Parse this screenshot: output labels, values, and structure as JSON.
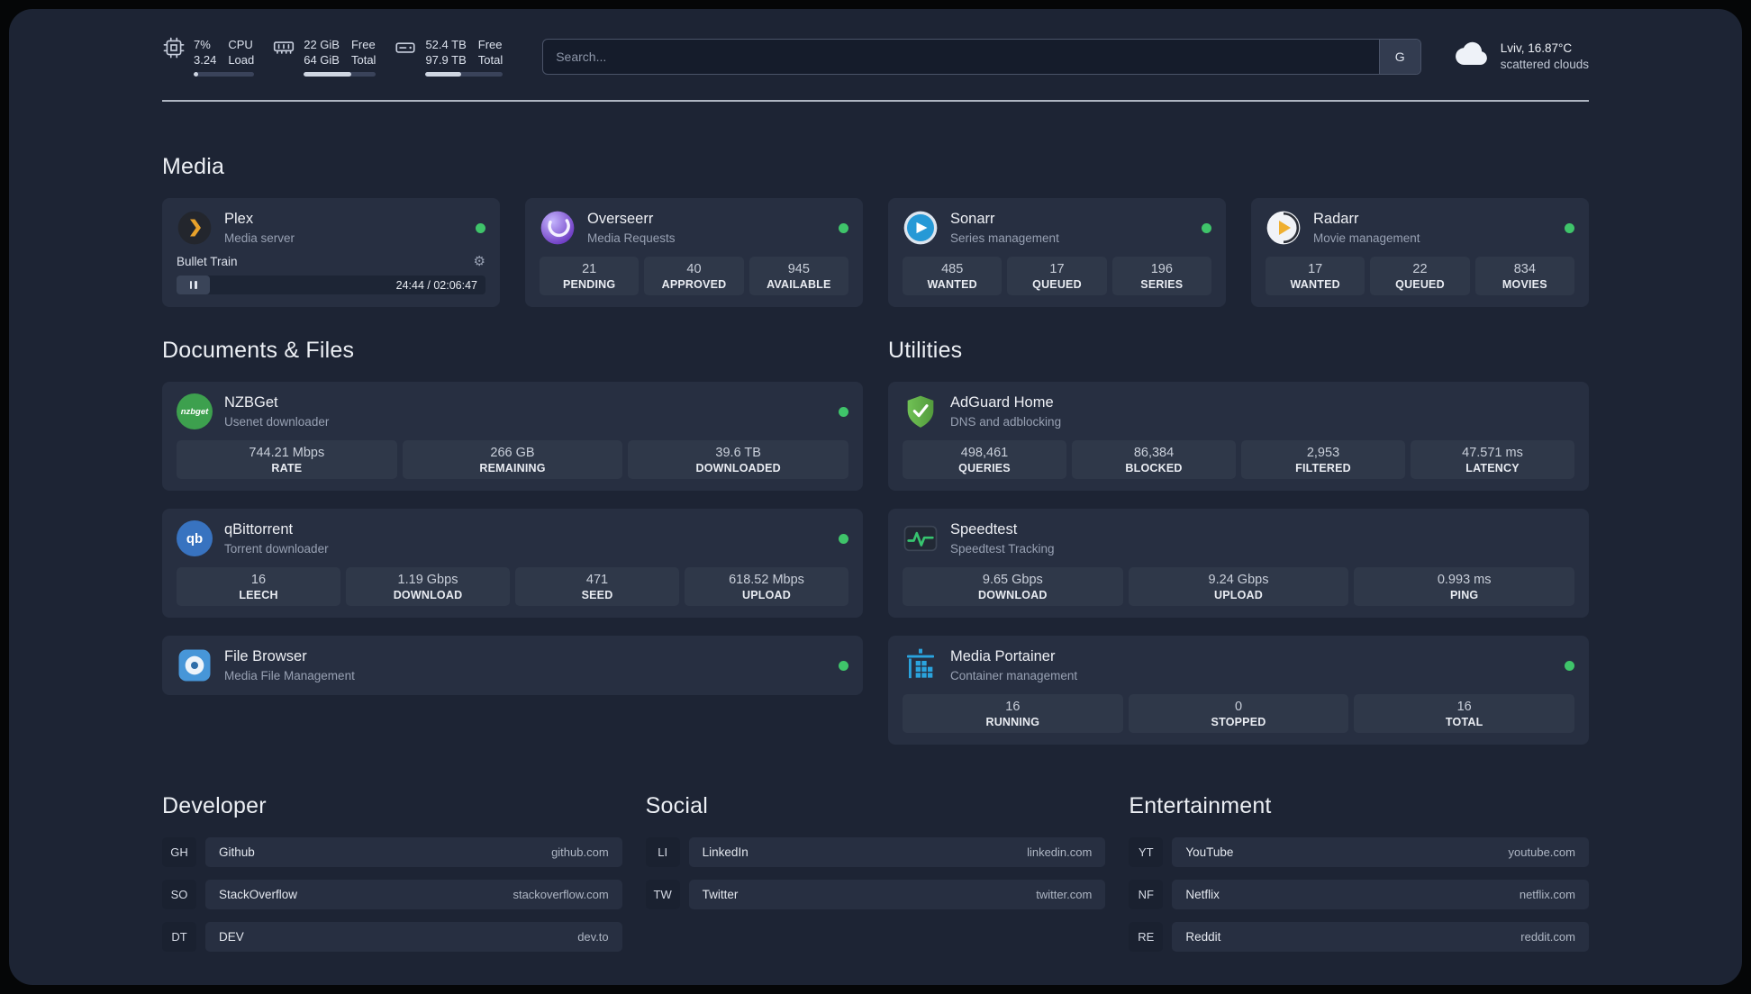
{
  "icons": {
    "gear": "⚙",
    "nzbget_text": "nzbget",
    "qbittorrent_text": "qb"
  },
  "topbar": {
    "cpu": {
      "value1": "7%",
      "value2": "3.24",
      "label1": "CPU",
      "label2": "Load",
      "progress": "7%"
    },
    "memory": {
      "value1": "22 GiB",
      "value2": "64 GiB",
      "label1": "Free",
      "label2": "Total",
      "progress": "66%"
    },
    "disk": {
      "value1": "52.4 TB",
      "value2": "97.9 TB",
      "label1": "Free",
      "label2": "Total",
      "progress": "46%"
    },
    "search": {
      "placeholder": "Search...",
      "provider_label": "G"
    },
    "weather": {
      "location": "Lviv, 16.87°C",
      "condition": "scattered clouds"
    }
  },
  "sections": {
    "media": {
      "title": "Media",
      "plex": {
        "name": "Plex",
        "desc": "Media server",
        "now_playing": "Bullet Train",
        "time": "24:44 / 02:06:47"
      },
      "overseerr": {
        "name": "Overseerr",
        "desc": "Media Requests",
        "stats": [
          {
            "value": "21",
            "label": "PENDING"
          },
          {
            "value": "40",
            "label": "APPROVED"
          },
          {
            "value": "945",
            "label": "AVAILABLE"
          }
        ]
      },
      "sonarr": {
        "name": "Sonarr",
        "desc": "Series management",
        "stats": [
          {
            "value": "485",
            "label": "WANTED"
          },
          {
            "value": "17",
            "label": "QUEUED"
          },
          {
            "value": "196",
            "label": "SERIES"
          }
        ]
      },
      "radarr": {
        "name": "Radarr",
        "desc": "Movie management",
        "stats": [
          {
            "value": "17",
            "label": "WANTED"
          },
          {
            "value": "22",
            "label": "QUEUED"
          },
          {
            "value": "834",
            "label": "MOVIES"
          }
        ]
      }
    },
    "documents": {
      "title": "Documents & Files",
      "nzbget": {
        "name": "NZBGet",
        "desc": "Usenet downloader",
        "stats": [
          {
            "value": "744.21 Mbps",
            "label": "RATE"
          },
          {
            "value": "266 GB",
            "label": "REMAINING"
          },
          {
            "value": "39.6 TB",
            "label": "DOWNLOADED"
          }
        ]
      },
      "qbittorrent": {
        "name": "qBittorrent",
        "desc": "Torrent downloader",
        "stats": [
          {
            "value": "16",
            "label": "LEECH"
          },
          {
            "value": "1.19 Gbps",
            "label": "DOWNLOAD"
          },
          {
            "value": "471",
            "label": "SEED"
          },
          {
            "value": "618.52 Mbps",
            "label": "UPLOAD"
          }
        ]
      },
      "filebrowser": {
        "name": "File Browser",
        "desc": "Media File Management"
      }
    },
    "utilities": {
      "title": "Utilities",
      "adguard": {
        "name": "AdGuard Home",
        "desc": "DNS and adblocking",
        "stats": [
          {
            "value": "498,461",
            "label": "QUERIES"
          },
          {
            "value": "86,384",
            "label": "BLOCKED"
          },
          {
            "value": "2,953",
            "label": "FILTERED"
          },
          {
            "value": "47.571 ms",
            "label": "LATENCY"
          }
        ]
      },
      "speedtest": {
        "name": "Speedtest",
        "desc": "Speedtest Tracking",
        "stats": [
          {
            "value": "9.65 Gbps",
            "label": "DOWNLOAD"
          },
          {
            "value": "9.24 Gbps",
            "label": "UPLOAD"
          },
          {
            "value": "0.993 ms",
            "label": "PING"
          }
        ]
      },
      "portainer": {
        "name": "Media Portainer",
        "desc": "Container management",
        "stats": [
          {
            "value": "16",
            "label": "RUNNING"
          },
          {
            "value": "0",
            "label": "STOPPED"
          },
          {
            "value": "16",
            "label": "TOTAL"
          }
        ]
      }
    }
  },
  "bookmarks": {
    "developer": {
      "title": "Developer",
      "items": [
        {
          "abbr": "GH",
          "name": "Github",
          "domain": "github.com"
        },
        {
          "abbr": "SO",
          "name": "StackOverflow",
          "domain": "stackoverflow.com"
        },
        {
          "abbr": "DT",
          "name": "DEV",
          "domain": "dev.to"
        }
      ]
    },
    "social": {
      "title": "Social",
      "items": [
        {
          "abbr": "LI",
          "name": "LinkedIn",
          "domain": "linkedin.com"
        },
        {
          "abbr": "TW",
          "name": "Twitter",
          "domain": "twitter.com"
        }
      ]
    },
    "entertainment": {
      "title": "Entertainment",
      "items": [
        {
          "abbr": "YT",
          "name": "YouTube",
          "domain": "youtube.com"
        },
        {
          "abbr": "NF",
          "name": "Netflix",
          "domain": "netflix.com"
        },
        {
          "abbr": "RE",
          "name": "Reddit",
          "domain": "reddit.com"
        }
      ]
    }
  }
}
